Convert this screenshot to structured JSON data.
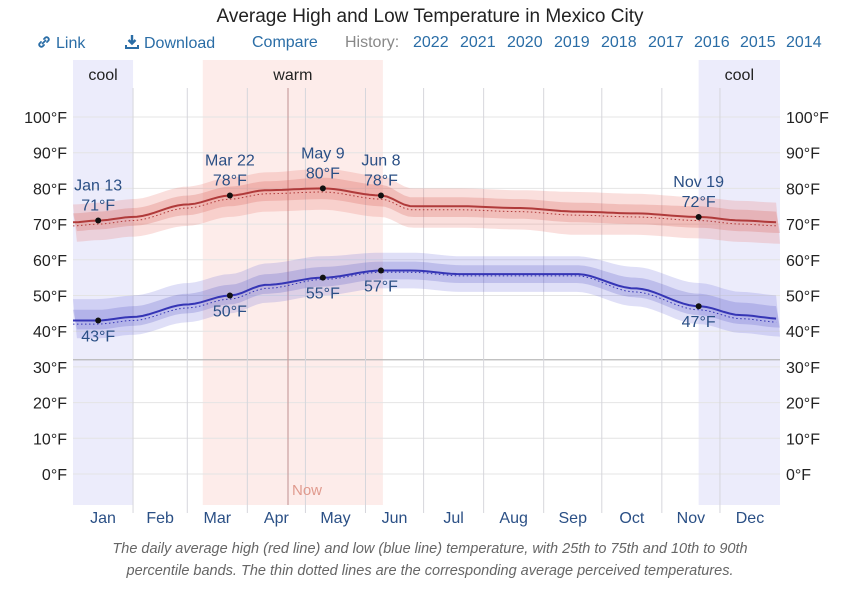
{
  "title": "Average High and Low Temperature in Mexico City",
  "toolbar": {
    "link_icon": "link-icon",
    "link_label": "Link",
    "download_icon": "download-icon",
    "download_label": "Download",
    "compare_label": "Compare",
    "history_label": "History:",
    "years": [
      "2022",
      "2021",
      "2020",
      "2019",
      "2018",
      "2017",
      "2016",
      "2015",
      "2014"
    ]
  },
  "caption_line1": "The daily average high (red line) and low (blue line) temperature, with 25th to 75th and 10th to 90th",
  "caption_line2": "percentile bands. The thin dotted lines are the corresponding average perceived temperatures.",
  "colors": {
    "high": "#b03a3a",
    "low": "#3535b5",
    "cool_season": "#ececfb",
    "warm_season": "#fdecea",
    "label_blue": "#2a4f85",
    "now": "#e09a8e"
  },
  "chart_data": {
    "type": "line",
    "title": "Average High and Low Temperature in Mexico City",
    "xlabel": "",
    "ylabel": "",
    "ylim": [
      -10,
      105
    ],
    "y_ticks": [
      0,
      10,
      20,
      30,
      40,
      50,
      60,
      70,
      80,
      90,
      100
    ],
    "y_tick_labels": [
      "0°F",
      "10°F",
      "20°F",
      "30°F",
      "40°F",
      "50°F",
      "60°F",
      "70°F",
      "80°F",
      "90°F",
      "100°F"
    ],
    "freezing_line": 32,
    "x_ticks": [
      "Jan",
      "Feb",
      "Mar",
      "Apr",
      "May",
      "Jun",
      "Jul",
      "Aug",
      "Sep",
      "Oct",
      "Nov",
      "Dec"
    ],
    "grid": true,
    "seasons": [
      {
        "label": "cool",
        "start_day": 0,
        "end_day": 31,
        "type": "cool"
      },
      {
        "label": "warm",
        "start_day": 67,
        "end_day": 160,
        "type": "warm"
      },
      {
        "label": "cool",
        "start_day": 323,
        "end_day": 365,
        "type": "cool"
      }
    ],
    "now": {
      "label": "Now",
      "day": 111
    },
    "series": [
      {
        "name": "Average High",
        "days": [
          0,
          13,
          31,
          59,
          81,
          100,
          129,
          159,
          175,
          200,
          230,
          260,
          290,
          323,
          345,
          365
        ],
        "values": [
          70.5,
          71,
          72,
          75.5,
          78,
          79.5,
          80,
          78,
          75,
          75,
          74.5,
          73.5,
          73,
          72,
          71,
          70.5
        ],
        "p25": [
          68,
          68.5,
          69.5,
          72.5,
          75,
          76.5,
          77,
          75,
          72,
          72,
          71.5,
          70.5,
          70,
          69,
          68,
          67.5
        ],
        "p75": [
          73,
          73.5,
          74.5,
          78,
          80.5,
          82,
          83,
          81,
          77.5,
          77.5,
          77,
          76,
          75.5,
          75,
          74,
          73.5
        ],
        "p10": [
          65,
          65.5,
          66.5,
          69.5,
          72,
          73.5,
          74,
          72,
          69,
          69,
          68.5,
          67,
          67,
          66,
          65,
          64.5
        ],
        "p90": [
          75.5,
          76,
          77,
          80.5,
          83,
          84.5,
          85.5,
          83.5,
          80,
          80,
          79.5,
          79,
          78.5,
          77.5,
          76.5,
          76
        ],
        "perceived": [
          69.5,
          70,
          71,
          74.5,
          77,
          78.5,
          79,
          77,
          74,
          74,
          73.5,
          72.5,
          72,
          71,
          70,
          69.5
        ]
      },
      {
        "name": "Average Low",
        "days": [
          0,
          13,
          31,
          59,
          81,
          100,
          129,
          159,
          175,
          200,
          230,
          260,
          290,
          323,
          345,
          365
        ],
        "values": [
          43,
          43,
          44,
          47.5,
          50,
          53,
          55,
          57,
          57,
          56,
          56,
          56,
          52,
          47,
          44.5,
          43.5
        ],
        "p25": [
          40.5,
          40.5,
          41.5,
          45,
          47.5,
          50.5,
          52.5,
          54.5,
          54.5,
          53.5,
          53.5,
          53.5,
          49.5,
          44.5,
          42,
          41
        ],
        "p75": [
          46,
          46,
          47,
          50.5,
          53,
          56,
          58,
          59.5,
          59.5,
          58.5,
          58.5,
          58.5,
          55,
          50.5,
          48,
          47
        ],
        "p10": [
          38,
          38,
          39,
          42.5,
          45,
          48,
          50,
          52,
          52,
          51,
          51,
          51,
          47,
          42,
          39.5,
          38.5
        ],
        "p90": [
          49,
          49,
          50,
          53.5,
          56,
          59,
          61,
          62,
          62,
          61,
          61,
          61,
          58,
          53.5,
          51,
          50
        ],
        "perceived": [
          42,
          42,
          43,
          46.5,
          49,
          52,
          54.5,
          56.5,
          56.5,
          55.5,
          55.5,
          55.5,
          51,
          46,
          43.5,
          42.5
        ]
      }
    ],
    "annotations": [
      {
        "series": "Average High",
        "date": "Jan 13",
        "day": 13,
        "value": 71,
        "label": "71°F",
        "position": "above"
      },
      {
        "series": "Average High",
        "date": "Mar 22",
        "day": 81,
        "value": 78,
        "label": "78°F",
        "position": "above"
      },
      {
        "series": "Average High",
        "date": "May 9",
        "day": 129,
        "value": 80,
        "label": "80°F",
        "position": "above"
      },
      {
        "series": "Average High",
        "date": "Jun 8",
        "day": 159,
        "value": 78,
        "label": "78°F",
        "position": "above"
      },
      {
        "series": "Average High",
        "date": "Nov 19",
        "day": 323,
        "value": 72,
        "label": "72°F",
        "position": "above"
      },
      {
        "series": "Average Low",
        "date": "Jan 13",
        "day": 13,
        "value": 43,
        "label": "43°F",
        "position": "below"
      },
      {
        "series": "Average Low",
        "date": "Mar 22",
        "day": 81,
        "value": 50,
        "label": "50°F",
        "position": "below"
      },
      {
        "series": "Average Low",
        "date": "May 9",
        "day": 129,
        "value": 55,
        "label": "55°F",
        "position": "below"
      },
      {
        "series": "Average Low",
        "date": "Jun 8",
        "day": 159,
        "value": 57,
        "label": "57°F",
        "position": "below"
      },
      {
        "series": "Average Low",
        "date": "Nov 19",
        "day": 323,
        "value": 47,
        "label": "47°F",
        "position": "below"
      }
    ]
  }
}
